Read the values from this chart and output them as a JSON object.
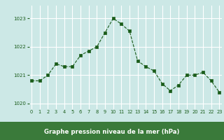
{
  "x": [
    0,
    1,
    2,
    3,
    4,
    5,
    6,
    7,
    8,
    9,
    10,
    11,
    12,
    13,
    14,
    15,
    16,
    17,
    18,
    19,
    20,
    21,
    22,
    23
  ],
  "y": [
    1020.8,
    1020.8,
    1021.0,
    1021.4,
    1021.3,
    1021.3,
    1021.7,
    1021.85,
    1022.0,
    1022.5,
    1023.0,
    1022.8,
    1022.55,
    1021.5,
    1021.3,
    1021.15,
    1020.7,
    1020.45,
    1020.65,
    1021.0,
    1021.0,
    1021.1,
    1020.8,
    1020.4
  ],
  "line_color": "#1a5c1a",
  "marker_color": "#1a5c1a",
  "bg_color": "#cce8e6",
  "plot_bg_color": "#cce8e6",
  "grid_color": "#ffffff",
  "label_bg_color": "#3a7a3a",
  "xlabel": "Graphe pression niveau de la mer (hPa)",
  "xlabel_color": "#ffffff",
  "tick_color": "#1a5c1a",
  "ylim_min": 1019.8,
  "ylim_max": 1023.45,
  "ytick_values": [
    1020,
    1021,
    1022,
    1023
  ],
  "xtick_values": [
    0,
    1,
    2,
    3,
    4,
    5,
    6,
    7,
    8,
    9,
    10,
    11,
    12,
    13,
    14,
    15,
    16,
    17,
    18,
    19,
    20,
    21,
    22,
    23
  ]
}
